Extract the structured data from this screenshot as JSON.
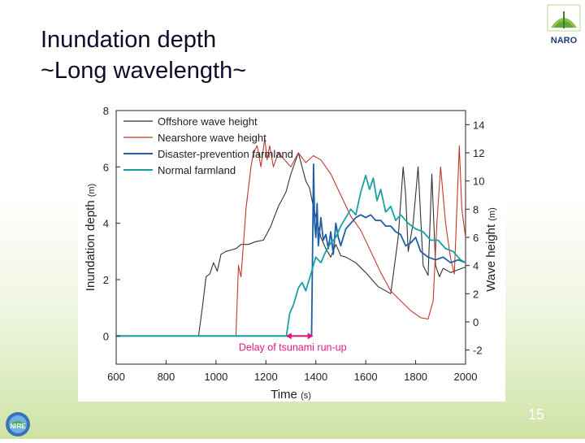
{
  "slide": {
    "title_line1": "Inundation depth",
    "title_line2": "~Long wavelength~",
    "page_number": "15",
    "logo_top_right_text": "NARO",
    "logo_bottom_left_text": "NIRE"
  },
  "colors": {
    "offshore": "#333333",
    "nearshore": "#c0392b",
    "disaster": "#1f5fa8",
    "normal": "#17a2a0",
    "annotation": "#e0197d"
  },
  "chart_data": {
    "type": "line",
    "xlabel": "Time",
    "xlabel_unit": "(s)",
    "ylabel": "Inundation depth",
    "ylabel_unit": "(m)",
    "y2label": "Wave height",
    "y2label_unit": "(m)",
    "xlim": [
      600,
      2000
    ],
    "ylim": [
      -1,
      8
    ],
    "y2lim": [
      -3,
      15
    ],
    "x_ticks": [
      "600",
      "800",
      "1000",
      "1200",
      "1400",
      "1600",
      "1800",
      "2000"
    ],
    "y_ticks": [
      "0",
      "2",
      "4",
      "6",
      "8"
    ],
    "y2_ticks": [
      "-2",
      "0",
      "2",
      "4",
      "6",
      "8",
      "10",
      "12",
      "14"
    ],
    "legend": [
      "Offshore wave height",
      "Nearshore wave height",
      "Disaster-prevention farmland",
      "Normal farmland"
    ],
    "annotation": {
      "text": "Delay of tsunami run-up",
      "x_start": 1280,
      "x_end": 1390
    },
    "series": [
      {
        "name": "Offshore wave height",
        "axis": "right",
        "color_key": "offshore",
        "x": [
          600,
          930,
          945,
          960,
          975,
          990,
          1005,
          1020,
          1040,
          1060,
          1080,
          1100,
          1130,
          1160,
          1190,
          1220,
          1250,
          1280,
          1300,
          1330,
          1345,
          1360,
          1375,
          1390,
          1400,
          1420,
          1440,
          1460,
          1480,
          1500,
          1520,
          1560,
          1600,
          1650,
          1700,
          1730,
          1750,
          1760,
          1770,
          1790,
          1810,
          1830,
          1850,
          1865,
          1880,
          1895,
          1910,
          1940,
          1970,
          2000
        ],
        "y": [
          -1,
          -1,
          1,
          3.2,
          3.4,
          4.2,
          3.6,
          4.8,
          5,
          5.1,
          5.2,
          5.5,
          5.5,
          5.7,
          5.8,
          6.8,
          8.2,
          9.2,
          10.5,
          12,
          11,
          10,
          9.5,
          8.2,
          7.5,
          6,
          5.2,
          4.6,
          5.5,
          4.7,
          4.6,
          4.2,
          3.5,
          2.5,
          2,
          6,
          11,
          9,
          5,
          7,
          11,
          4,
          3.3,
          10.5,
          4,
          3.2,
          3.8,
          3.5,
          3.7,
          3.9
        ]
      },
      {
        "name": "Nearshore wave height",
        "axis": "right",
        "color_key": "nearshore",
        "x": [
          600,
          1080,
          1090,
          1100,
          1110,
          1120,
          1130,
          1140,
          1150,
          1165,
          1180,
          1195,
          1205,
          1215,
          1230,
          1250,
          1275,
          1300,
          1330,
          1360,
          1390,
          1420,
          1460,
          1500,
          1540,
          1580,
          1620,
          1660,
          1700,
          1740,
          1780,
          1820,
          1850,
          1870,
          1885,
          1900,
          1920,
          1940,
          1955,
          1965,
          1975,
          1985,
          2000
        ],
        "y": [
          -1,
          -1,
          4,
          3.2,
          5.5,
          8,
          9.5,
          11,
          12,
          12.5,
          11,
          13,
          11.5,
          12.5,
          11,
          12,
          11.5,
          11,
          12,
          11.3,
          11.8,
          11.5,
          10.5,
          9,
          7.5,
          6.5,
          5,
          3.5,
          2.2,
          1.5,
          0.8,
          0.3,
          0.2,
          1.5,
          7,
          11,
          7,
          4.5,
          3.4,
          8,
          12.5,
          8,
          6
        ]
      },
      {
        "name": "Disaster-prevention farmland",
        "axis": "left",
        "color_key": "disaster",
        "x": [
          600,
          1383,
          1387,
          1391,
          1395,
          1400,
          1405,
          1410,
          1420,
          1430,
          1440,
          1450,
          1460,
          1470,
          1480,
          1490,
          1500,
          1520,
          1540,
          1560,
          1580,
          1600,
          1620,
          1640,
          1660,
          1680,
          1700,
          1720,
          1740,
          1760,
          1780,
          1800,
          1820,
          1850,
          1880,
          1910,
          1940,
          1970,
          2000
        ],
        "y": [
          0,
          0,
          3,
          6.1,
          4,
          3.5,
          4.7,
          3.2,
          4.2,
          3.4,
          3.6,
          3.1,
          3.7,
          2.9,
          4,
          3.5,
          3.2,
          3.8,
          4,
          4.2,
          4.3,
          4.2,
          4.3,
          4.1,
          4.1,
          3.9,
          3.9,
          3.7,
          3.6,
          3.2,
          3.3,
          3.5,
          3.0,
          2.8,
          2.7,
          2.8,
          2.6,
          2.7,
          2.6
        ]
      },
      {
        "name": "Normal farmland",
        "axis": "left",
        "color_key": "normal",
        "x": [
          600,
          1282,
          1295,
          1310,
          1330,
          1345,
          1360,
          1380,
          1400,
          1420,
          1440,
          1460,
          1480,
          1500,
          1520,
          1540,
          1560,
          1580,
          1600,
          1615,
          1630,
          1645,
          1660,
          1680,
          1700,
          1720,
          1740,
          1770,
          1800,
          1830,
          1860,
          1890,
          1920,
          1950,
          1980,
          2000
        ],
        "y": [
          0,
          0,
          0.8,
          1.1,
          1.7,
          1.9,
          1.6,
          2.2,
          2.8,
          2.6,
          3,
          3.3,
          3.5,
          3.9,
          4.2,
          4.5,
          4.3,
          5.1,
          5.7,
          5.2,
          5.6,
          4.8,
          5.2,
          4.4,
          4.6,
          4.1,
          4.3,
          4.0,
          3.8,
          3.7,
          3.4,
          3.4,
          3.1,
          3.0,
          2.7,
          2.6
        ]
      }
    ]
  }
}
